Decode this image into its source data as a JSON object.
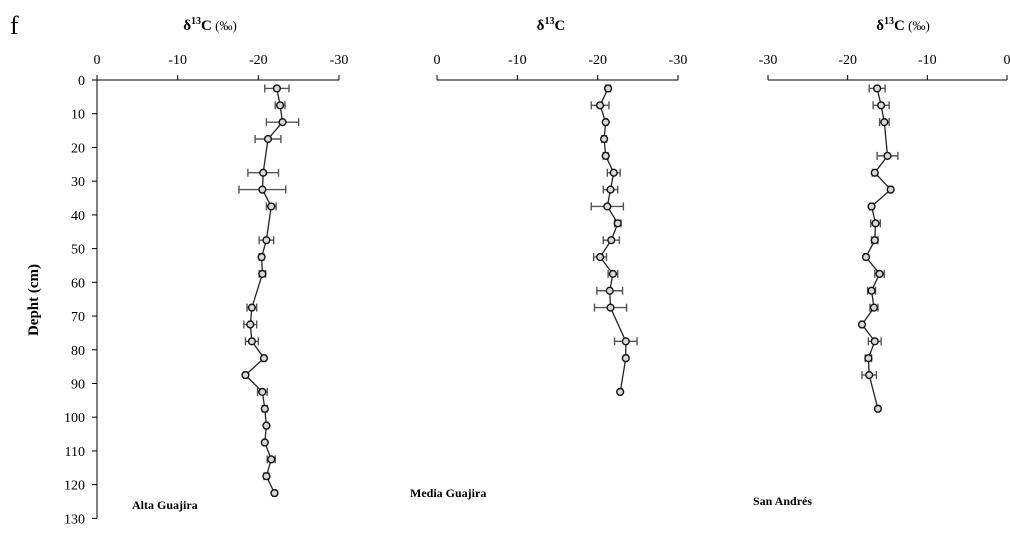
{
  "figure": {
    "panel_letter": "f",
    "ylabel": "Depht (cm)"
  },
  "chart_data": [
    {
      "type": "line",
      "title": "Alta Guajira",
      "xlabel": "δ13C (‰)",
      "ylabel": "Depht (cm)",
      "xlim": [
        0,
        -30
      ],
      "xticks": [
        0,
        -10,
        -20,
        -30
      ],
      "ylim": [
        0,
        130
      ],
      "yticks": [
        0,
        10,
        20,
        30,
        40,
        50,
        60,
        70,
        80,
        90,
        100,
        110,
        120,
        130
      ],
      "y_inverted": true,
      "x_axis_position": "top",
      "error_bars": true,
      "grid": false,
      "series": [
        {
          "points": [
            {
              "depth": 2.5,
              "value": -22.3,
              "err": 1.5
            },
            {
              "depth": 7.5,
              "value": -22.7,
              "err": 0.6
            },
            {
              "depth": 12.5,
              "value": -23.0,
              "err": 2.0
            },
            {
              "depth": 17.5,
              "value": -21.2,
              "err": 1.6
            },
            {
              "depth": 27.5,
              "value": -20.6,
              "err": 1.9
            },
            {
              "depth": 32.5,
              "value": -20.5,
              "err": 2.9
            },
            {
              "depth": 37.5,
              "value": -21.6,
              "err": 0.6
            },
            {
              "depth": 47.5,
              "value": -21.0,
              "err": 0.9
            },
            {
              "depth": 52.5,
              "value": -20.4,
              "err": 0.3
            },
            {
              "depth": 57.5,
              "value": -20.5,
              "err": 0.4
            },
            {
              "depth": 67.5,
              "value": -19.2,
              "err": 0.6
            },
            {
              "depth": 72.5,
              "value": -19.0,
              "err": 0.8
            },
            {
              "depth": 77.5,
              "value": -19.2,
              "err": 0.8
            },
            {
              "depth": 82.5,
              "value": -20.7,
              "err": 0.2
            },
            {
              "depth": 87.5,
              "value": -18.4,
              "err": 0.2
            },
            {
              "depth": 92.5,
              "value": -20.5,
              "err": 0.6
            },
            {
              "depth": 97.5,
              "value": -20.8,
              "err": 0.3
            },
            {
              "depth": 102.5,
              "value": -21.0,
              "err": 0.2
            },
            {
              "depth": 107.5,
              "value": -20.8,
              "err": 0.2
            },
            {
              "depth": 112.5,
              "value": -21.6,
              "err": 0.5
            },
            {
              "depth": 117.5,
              "value": -21.0,
              "err": 0.3
            },
            {
              "depth": 122.5,
              "value": -22.0,
              "err": 0.2
            }
          ]
        }
      ]
    },
    {
      "type": "line",
      "title": "Media Guajira",
      "xlabel": "δ13C",
      "xlim": [
        0,
        -30
      ],
      "xticks": [
        0,
        -10,
        -20,
        -30
      ],
      "ylim": [
        0,
        130
      ],
      "y_inverted": true,
      "x_axis_position": "top",
      "error_bars": true,
      "grid": false,
      "series": [
        {
          "points": [
            {
              "depth": 2.5,
              "value": -21.3,
              "err": 0.3
            },
            {
              "depth": 7.5,
              "value": -20.3,
              "err": 1.1
            },
            {
              "depth": 12.5,
              "value": -21.0,
              "err": 0.2
            },
            {
              "depth": 17.5,
              "value": -20.8,
              "err": 0.3
            },
            {
              "depth": 22.5,
              "value": -21.0,
              "err": 0.3
            },
            {
              "depth": 27.5,
              "value": -22.0,
              "err": 0.8
            },
            {
              "depth": 32.5,
              "value": -21.6,
              "err": 0.9
            },
            {
              "depth": 37.5,
              "value": -21.2,
              "err": 2.0
            },
            {
              "depth": 42.5,
              "value": -22.5,
              "err": 0.4
            },
            {
              "depth": 47.5,
              "value": -21.7,
              "err": 1.0
            },
            {
              "depth": 52.5,
              "value": -20.3,
              "err": 0.8
            },
            {
              "depth": 57.5,
              "value": -21.9,
              "err": 0.6
            },
            {
              "depth": 62.5,
              "value": -21.5,
              "err": 1.6
            },
            {
              "depth": 67.5,
              "value": -21.6,
              "err": 2.0
            },
            {
              "depth": 77.5,
              "value": -23.5,
              "err": 1.4
            },
            {
              "depth": 82.5,
              "value": -23.5,
              "err": 0.2
            },
            {
              "depth": 92.5,
              "value": -22.8,
              "err": 0.2
            }
          ]
        }
      ]
    },
    {
      "type": "line",
      "title": "San Andrés",
      "xlabel": "δ13C (‰)",
      "xlim": [
        -30,
        0
      ],
      "xticks": [
        -30,
        -20,
        -10,
        0
      ],
      "ylim": [
        0,
        130
      ],
      "y_inverted": true,
      "x_axis_position": "top",
      "error_bars": true,
      "grid": false,
      "series": [
        {
          "points": [
            {
              "depth": 2.5,
              "value": -16.3,
              "err": 1.0
            },
            {
              "depth": 7.5,
              "value": -15.8,
              "err": 1.0
            },
            {
              "depth": 12.5,
              "value": -15.4,
              "err": 0.6
            },
            {
              "depth": 22.5,
              "value": -15.0,
              "err": 1.3
            },
            {
              "depth": 27.5,
              "value": -16.6,
              "err": 0.3
            },
            {
              "depth": 32.5,
              "value": -14.6,
              "err": 0.2
            },
            {
              "depth": 37.5,
              "value": -17.0,
              "err": 0.2
            },
            {
              "depth": 42.5,
              "value": -16.5,
              "err": 0.6
            },
            {
              "depth": 47.5,
              "value": -16.6,
              "err": 0.4
            },
            {
              "depth": 52.5,
              "value": -17.7,
              "err": 0.2
            },
            {
              "depth": 57.5,
              "value": -16.0,
              "err": 0.6
            },
            {
              "depth": 62.5,
              "value": -17.0,
              "err": 0.5
            },
            {
              "depth": 67.5,
              "value": -16.7,
              "err": 0.5
            },
            {
              "depth": 72.5,
              "value": -18.2,
              "err": 0.2
            },
            {
              "depth": 77.5,
              "value": -16.6,
              "err": 0.8
            },
            {
              "depth": 82.5,
              "value": -17.4,
              "err": 0.4
            },
            {
              "depth": 87.5,
              "value": -17.3,
              "err": 0.9
            },
            {
              "depth": 97.5,
              "value": -16.2,
              "err": 0.2
            }
          ]
        }
      ]
    }
  ]
}
